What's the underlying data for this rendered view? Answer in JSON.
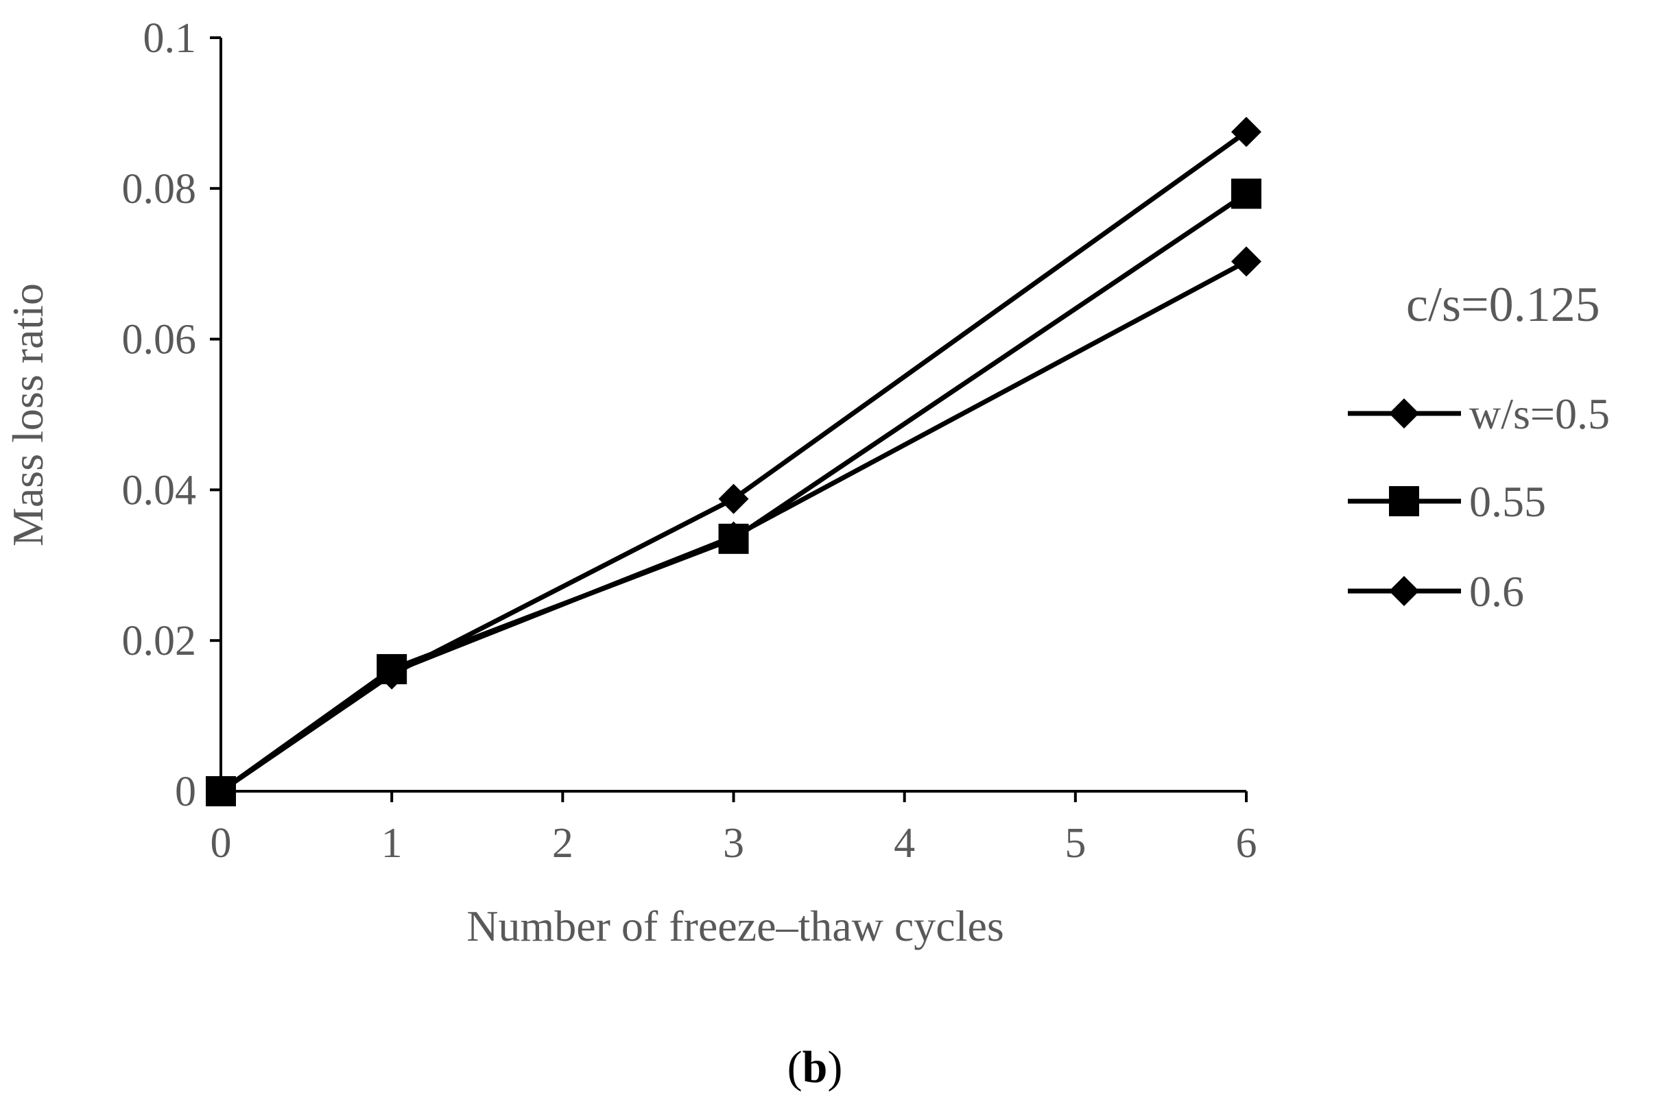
{
  "chart_data": {
    "type": "line",
    "xlabel": "Number of freeze–thaw cycles",
    "ylabel": "Mass loss ratio",
    "xlim": [
      0,
      6
    ],
    "ylim": [
      0,
      0.1
    ],
    "x_ticks": [
      "0",
      "1",
      "2",
      "3",
      "4",
      "5",
      "6"
    ],
    "y_ticks": [
      "0",
      "0.02",
      "0.04",
      "0.06",
      "0.08",
      "0.1"
    ],
    "grid": false,
    "legend_title": "c/s=0.125",
    "legend_position": "right",
    "panel_label_open": "(",
    "panel_label_letter": "b",
    "panel_label_close": ")",
    "series": [
      {
        "name": "w/s=0.5",
        "marker": "diamond",
        "x": [
          0,
          1,
          3,
          6
        ],
        "y": [
          0,
          0.0155,
          0.0388,
          0.0875
        ]
      },
      {
        "name": "0.55",
        "marker": "square",
        "x": [
          0,
          1,
          3,
          6
        ],
        "y": [
          0,
          0.0162,
          0.0335,
          0.0793
        ]
      },
      {
        "name": "0.6",
        "marker": "diamond",
        "x": [
          0,
          1,
          3,
          6
        ],
        "y": [
          0,
          0.0158,
          0.0338,
          0.0703
        ]
      }
    ],
    "colors": {
      "line": "#000000",
      "axis": "#000000",
      "text": "#595959"
    }
  }
}
